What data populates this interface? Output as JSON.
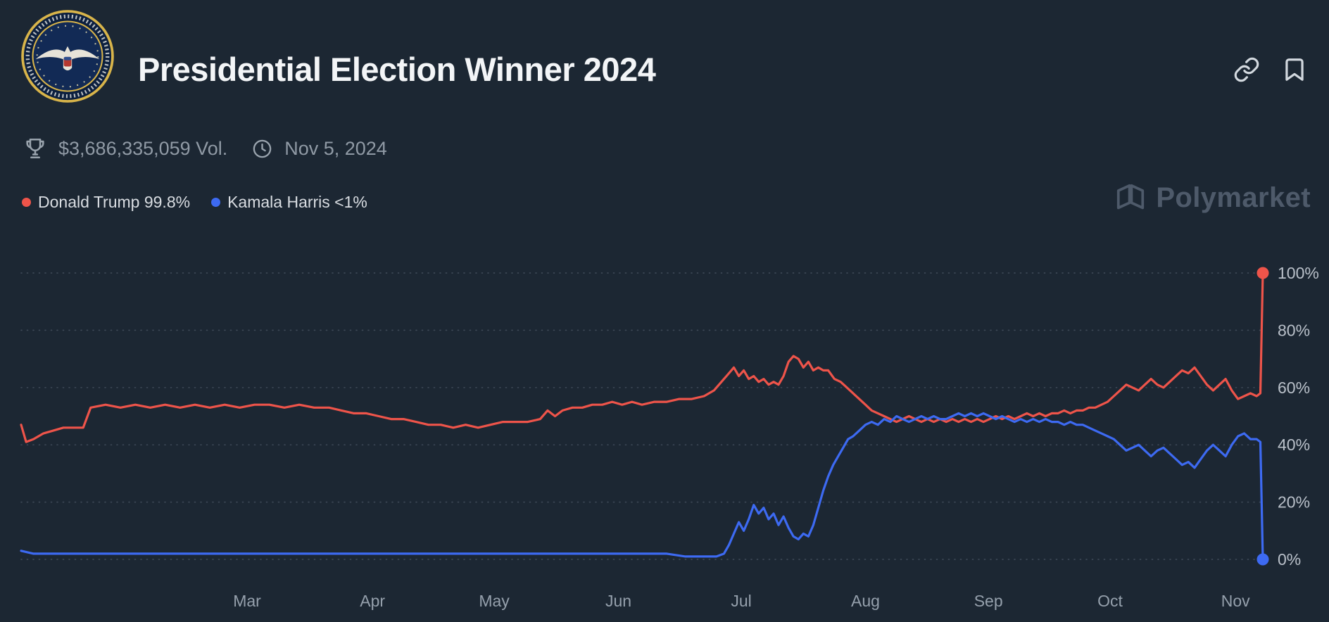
{
  "colors": {
    "background": "#1c2733",
    "grid": "#3d4856",
    "axis_text": "#bac1ca",
    "month_text": "#95a0ac",
    "title": "#f3f5f7",
    "muted_text": "#909aa5",
    "legend_text": "#d9dde2",
    "watermark": "#4e5a6a",
    "trump_red": "#ee544a",
    "harris_blue": "#3d6af2"
  },
  "header": {
    "title": "Presidential Election Winner 2024",
    "logo_icon": "presidential-seal-logo",
    "action_icons": [
      "link-icon",
      "bookmark-icon"
    ]
  },
  "stats": {
    "volume_icon": "trophy-icon",
    "volume": "$3,686,335,059 Vol.",
    "date_icon": "clock-icon",
    "date": "Nov 5, 2024"
  },
  "legend": [
    {
      "label": "Donald Trump 99.8%",
      "color": "#ee544a"
    },
    {
      "label": "Kamala Harris <1%",
      "color": "#3d6af2"
    }
  ],
  "watermark": {
    "icon": "polymarket-logo-icon",
    "label": "Polymarket"
  },
  "chart_data": {
    "type": "line",
    "title": "Presidential Election Winner 2024",
    "grid": "dotted-horizontal",
    "legend_position": "top-left",
    "x_axis": {
      "ticks": [
        {
          "label": "Mar",
          "position": 0.182
        },
        {
          "label": "Apr",
          "position": 0.283
        },
        {
          "label": "May",
          "position": 0.381
        },
        {
          "label": "Jun",
          "position": 0.481
        },
        {
          "label": "Jul",
          "position": 0.58
        },
        {
          "label": "Aug",
          "position": 0.68
        },
        {
          "label": "Sep",
          "position": 0.779
        },
        {
          "label": "Oct",
          "position": 0.877
        },
        {
          "label": "Nov",
          "position": 0.978
        }
      ]
    },
    "y_axis": {
      "min": 0,
      "max": 100,
      "side": "right",
      "ticks": [
        {
          "label": "0%",
          "value": 0
        },
        {
          "label": "20%",
          "value": 20
        },
        {
          "label": "40%",
          "value": 40
        },
        {
          "label": "60%",
          "value": 60
        },
        {
          "label": "80%",
          "value": 80
        },
        {
          "label": "100%",
          "value": 100
        }
      ]
    },
    "series": [
      {
        "id": "trump",
        "name": "Donald Trump",
        "current": "99.8%",
        "color": "#ee544a",
        "points": [
          [
            0.0,
            47
          ],
          [
            0.004,
            41
          ],
          [
            0.01,
            42
          ],
          [
            0.018,
            44
          ],
          [
            0.026,
            45
          ],
          [
            0.034,
            46
          ],
          [
            0.042,
            46
          ],
          [
            0.05,
            46
          ],
          [
            0.056,
            53
          ],
          [
            0.068,
            54
          ],
          [
            0.08,
            53
          ],
          [
            0.092,
            54
          ],
          [
            0.104,
            53
          ],
          [
            0.116,
            54
          ],
          [
            0.128,
            53
          ],
          [
            0.14,
            54
          ],
          [
            0.152,
            53
          ],
          [
            0.164,
            54
          ],
          [
            0.176,
            53
          ],
          [
            0.188,
            54
          ],
          [
            0.2,
            54
          ],
          [
            0.212,
            53
          ],
          [
            0.224,
            54
          ],
          [
            0.236,
            53
          ],
          [
            0.248,
            53
          ],
          [
            0.258,
            52
          ],
          [
            0.268,
            51
          ],
          [
            0.278,
            51
          ],
          [
            0.288,
            50
          ],
          [
            0.298,
            49
          ],
          [
            0.308,
            49
          ],
          [
            0.318,
            48
          ],
          [
            0.328,
            47
          ],
          [
            0.338,
            47
          ],
          [
            0.348,
            46
          ],
          [
            0.358,
            47
          ],
          [
            0.368,
            46
          ],
          [
            0.378,
            47
          ],
          [
            0.388,
            48
          ],
          [
            0.398,
            48
          ],
          [
            0.408,
            48
          ],
          [
            0.418,
            49
          ],
          [
            0.424,
            52
          ],
          [
            0.43,
            50
          ],
          [
            0.436,
            52
          ],
          [
            0.444,
            53
          ],
          [
            0.452,
            53
          ],
          [
            0.46,
            54
          ],
          [
            0.468,
            54
          ],
          [
            0.476,
            55
          ],
          [
            0.484,
            54
          ],
          [
            0.492,
            55
          ],
          [
            0.5,
            54
          ],
          [
            0.51,
            55
          ],
          [
            0.52,
            55
          ],
          [
            0.53,
            56
          ],
          [
            0.54,
            56
          ],
          [
            0.55,
            57
          ],
          [
            0.558,
            59
          ],
          [
            0.564,
            62
          ],
          [
            0.57,
            65
          ],
          [
            0.574,
            67
          ],
          [
            0.578,
            64
          ],
          [
            0.582,
            66
          ],
          [
            0.586,
            63
          ],
          [
            0.59,
            64
          ],
          [
            0.594,
            62
          ],
          [
            0.598,
            63
          ],
          [
            0.602,
            61
          ],
          [
            0.606,
            62
          ],
          [
            0.61,
            61
          ],
          [
            0.614,
            64
          ],
          [
            0.618,
            69
          ],
          [
            0.622,
            71
          ],
          [
            0.626,
            70
          ],
          [
            0.63,
            67
          ],
          [
            0.634,
            69
          ],
          [
            0.638,
            66
          ],
          [
            0.642,
            67
          ],
          [
            0.646,
            66
          ],
          [
            0.65,
            66
          ],
          [
            0.655,
            63
          ],
          [
            0.66,
            62
          ],
          [
            0.665,
            60
          ],
          [
            0.67,
            58
          ],
          [
            0.675,
            56
          ],
          [
            0.68,
            54
          ],
          [
            0.685,
            52
          ],
          [
            0.69,
            51
          ],
          [
            0.695,
            50
          ],
          [
            0.7,
            49
          ],
          [
            0.705,
            48
          ],
          [
            0.71,
            49
          ],
          [
            0.715,
            50
          ],
          [
            0.72,
            49
          ],
          [
            0.725,
            48
          ],
          [
            0.73,
            49
          ],
          [
            0.735,
            48
          ],
          [
            0.74,
            49
          ],
          [
            0.745,
            48
          ],
          [
            0.75,
            49
          ],
          [
            0.755,
            48
          ],
          [
            0.76,
            49
          ],
          [
            0.765,
            48
          ],
          [
            0.77,
            49
          ],
          [
            0.775,
            48
          ],
          [
            0.78,
            49
          ],
          [
            0.785,
            50
          ],
          [
            0.79,
            49
          ],
          [
            0.795,
            50
          ],
          [
            0.8,
            49
          ],
          [
            0.805,
            50
          ],
          [
            0.81,
            51
          ],
          [
            0.815,
            50
          ],
          [
            0.82,
            51
          ],
          [
            0.825,
            50
          ],
          [
            0.83,
            51
          ],
          [
            0.835,
            51
          ],
          [
            0.84,
            52
          ],
          [
            0.845,
            51
          ],
          [
            0.85,
            52
          ],
          [
            0.855,
            52
          ],
          [
            0.86,
            53
          ],
          [
            0.865,
            53
          ],
          [
            0.87,
            54
          ],
          [
            0.875,
            55
          ],
          [
            0.88,
            57
          ],
          [
            0.885,
            59
          ],
          [
            0.89,
            61
          ],
          [
            0.895,
            60
          ],
          [
            0.9,
            59
          ],
          [
            0.905,
            61
          ],
          [
            0.91,
            63
          ],
          [
            0.915,
            61
          ],
          [
            0.92,
            60
          ],
          [
            0.925,
            62
          ],
          [
            0.93,
            64
          ],
          [
            0.935,
            66
          ],
          [
            0.94,
            65
          ],
          [
            0.945,
            67
          ],
          [
            0.95,
            64
          ],
          [
            0.955,
            61
          ],
          [
            0.96,
            59
          ],
          [
            0.965,
            61
          ],
          [
            0.97,
            63
          ],
          [
            0.975,
            59
          ],
          [
            0.98,
            56
          ],
          [
            0.985,
            57
          ],
          [
            0.99,
            58
          ],
          [
            0.995,
            57
          ],
          [
            0.998,
            58
          ],
          [
            1.0,
            100
          ]
        ]
      },
      {
        "id": "harris",
        "name": "Kamala Harris",
        "current": "<1%",
        "color": "#3d6af2",
        "points": [
          [
            0.0,
            3
          ],
          [
            0.01,
            2
          ],
          [
            0.025,
            2
          ],
          [
            0.04,
            2
          ],
          [
            0.055,
            2
          ],
          [
            0.07,
            2
          ],
          [
            0.085,
            2
          ],
          [
            0.1,
            2
          ],
          [
            0.115,
            2
          ],
          [
            0.13,
            2
          ],
          [
            0.145,
            2
          ],
          [
            0.16,
            2
          ],
          [
            0.175,
            2
          ],
          [
            0.19,
            2
          ],
          [
            0.205,
            2
          ],
          [
            0.22,
            2
          ],
          [
            0.235,
            2
          ],
          [
            0.25,
            2
          ],
          [
            0.265,
            2
          ],
          [
            0.28,
            2
          ],
          [
            0.295,
            2
          ],
          [
            0.31,
            2
          ],
          [
            0.325,
            2
          ],
          [
            0.34,
            2
          ],
          [
            0.355,
            2
          ],
          [
            0.37,
            2
          ],
          [
            0.385,
            2
          ],
          [
            0.4,
            2
          ],
          [
            0.415,
            2
          ],
          [
            0.43,
            2
          ],
          [
            0.445,
            2
          ],
          [
            0.46,
            2
          ],
          [
            0.475,
            2
          ],
          [
            0.49,
            2
          ],
          [
            0.505,
            2
          ],
          [
            0.52,
            2
          ],
          [
            0.535,
            1
          ],
          [
            0.55,
            1
          ],
          [
            0.56,
            1
          ],
          [
            0.566,
            2
          ],
          [
            0.57,
            5
          ],
          [
            0.574,
            9
          ],
          [
            0.578,
            13
          ],
          [
            0.582,
            10
          ],
          [
            0.586,
            14
          ],
          [
            0.59,
            19
          ],
          [
            0.594,
            16
          ],
          [
            0.598,
            18
          ],
          [
            0.602,
            14
          ],
          [
            0.606,
            16
          ],
          [
            0.61,
            12
          ],
          [
            0.614,
            15
          ],
          [
            0.618,
            11
          ],
          [
            0.622,
            8
          ],
          [
            0.626,
            7
          ],
          [
            0.63,
            9
          ],
          [
            0.634,
            8
          ],
          [
            0.638,
            12
          ],
          [
            0.642,
            18
          ],
          [
            0.646,
            24
          ],
          [
            0.65,
            29
          ],
          [
            0.654,
            33
          ],
          [
            0.658,
            36
          ],
          [
            0.662,
            39
          ],
          [
            0.666,
            42
          ],
          [
            0.67,
            43
          ],
          [
            0.675,
            45
          ],
          [
            0.68,
            47
          ],
          [
            0.685,
            48
          ],
          [
            0.69,
            47
          ],
          [
            0.695,
            49
          ],
          [
            0.7,
            48
          ],
          [
            0.705,
            50
          ],
          [
            0.71,
            49
          ],
          [
            0.715,
            48
          ],
          [
            0.72,
            49
          ],
          [
            0.725,
            50
          ],
          [
            0.73,
            49
          ],
          [
            0.735,
            50
          ],
          [
            0.74,
            49
          ],
          [
            0.745,
            49
          ],
          [
            0.75,
            50
          ],
          [
            0.755,
            51
          ],
          [
            0.76,
            50
          ],
          [
            0.765,
            51
          ],
          [
            0.77,
            50
          ],
          [
            0.775,
            51
          ],
          [
            0.78,
            50
          ],
          [
            0.785,
            49
          ],
          [
            0.79,
            50
          ],
          [
            0.795,
            49
          ],
          [
            0.8,
            48
          ],
          [
            0.805,
            49
          ],
          [
            0.81,
            48
          ],
          [
            0.815,
            49
          ],
          [
            0.82,
            48
          ],
          [
            0.825,
            49
          ],
          [
            0.83,
            48
          ],
          [
            0.835,
            48
          ],
          [
            0.84,
            47
          ],
          [
            0.845,
            48
          ],
          [
            0.85,
            47
          ],
          [
            0.855,
            47
          ],
          [
            0.86,
            46
          ],
          [
            0.865,
            45
          ],
          [
            0.87,
            44
          ],
          [
            0.875,
            43
          ],
          [
            0.88,
            42
          ],
          [
            0.885,
            40
          ],
          [
            0.89,
            38
          ],
          [
            0.895,
            39
          ],
          [
            0.9,
            40
          ],
          [
            0.905,
            38
          ],
          [
            0.91,
            36
          ],
          [
            0.915,
            38
          ],
          [
            0.92,
            39
          ],
          [
            0.925,
            37
          ],
          [
            0.93,
            35
          ],
          [
            0.935,
            33
          ],
          [
            0.94,
            34
          ],
          [
            0.945,
            32
          ],
          [
            0.95,
            35
          ],
          [
            0.955,
            38
          ],
          [
            0.96,
            40
          ],
          [
            0.965,
            38
          ],
          [
            0.97,
            36
          ],
          [
            0.975,
            40
          ],
          [
            0.98,
            43
          ],
          [
            0.985,
            44
          ],
          [
            0.99,
            42
          ],
          [
            0.995,
            42
          ],
          [
            0.998,
            41
          ],
          [
            1.0,
            0
          ]
        ]
      }
    ]
  }
}
